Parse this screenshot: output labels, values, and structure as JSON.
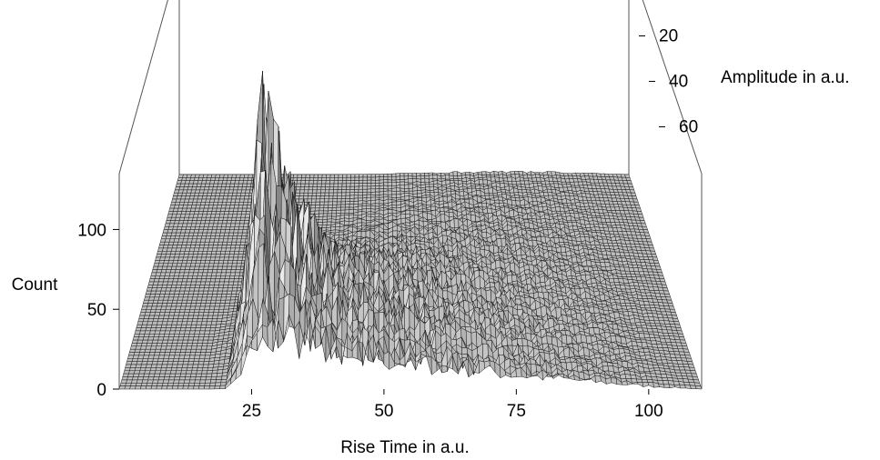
{
  "chart_data": {
    "type": "surface3d",
    "title": "",
    "xlabel": "Rise Time in a.u.",
    "ylabel": "Amplitude in a.u.",
    "zlabel": "Count",
    "x_ticks": [
      25,
      50,
      75,
      100
    ],
    "y_ticks": [
      20,
      40,
      60
    ],
    "z_ticks": [
      0,
      50,
      100
    ],
    "xlim": [
      0,
      110
    ],
    "ylim": [
      0,
      70
    ],
    "zlim": [
      0,
      135
    ],
    "peak": {
      "rise_time": 26,
      "amplitude": 15,
      "count": 120
    },
    "ridge": [
      {
        "rise_time": 20,
        "count": 2
      },
      {
        "rise_time": 23,
        "count": 55
      },
      {
        "rise_time": 26,
        "count": 120
      },
      {
        "rise_time": 30,
        "count": 85
      },
      {
        "rise_time": 35,
        "count": 60
      },
      {
        "rise_time": 40,
        "count": 40
      },
      {
        "rise_time": 50,
        "count": 25
      },
      {
        "rise_time": 60,
        "count": 18
      },
      {
        "rise_time": 75,
        "count": 10
      },
      {
        "rise_time": 90,
        "count": 5
      },
      {
        "rise_time": 100,
        "count": 2
      }
    ],
    "colors": {
      "surface": "#b8b8b8",
      "mesh": "#1a1a1a",
      "box": "#555555"
    }
  }
}
